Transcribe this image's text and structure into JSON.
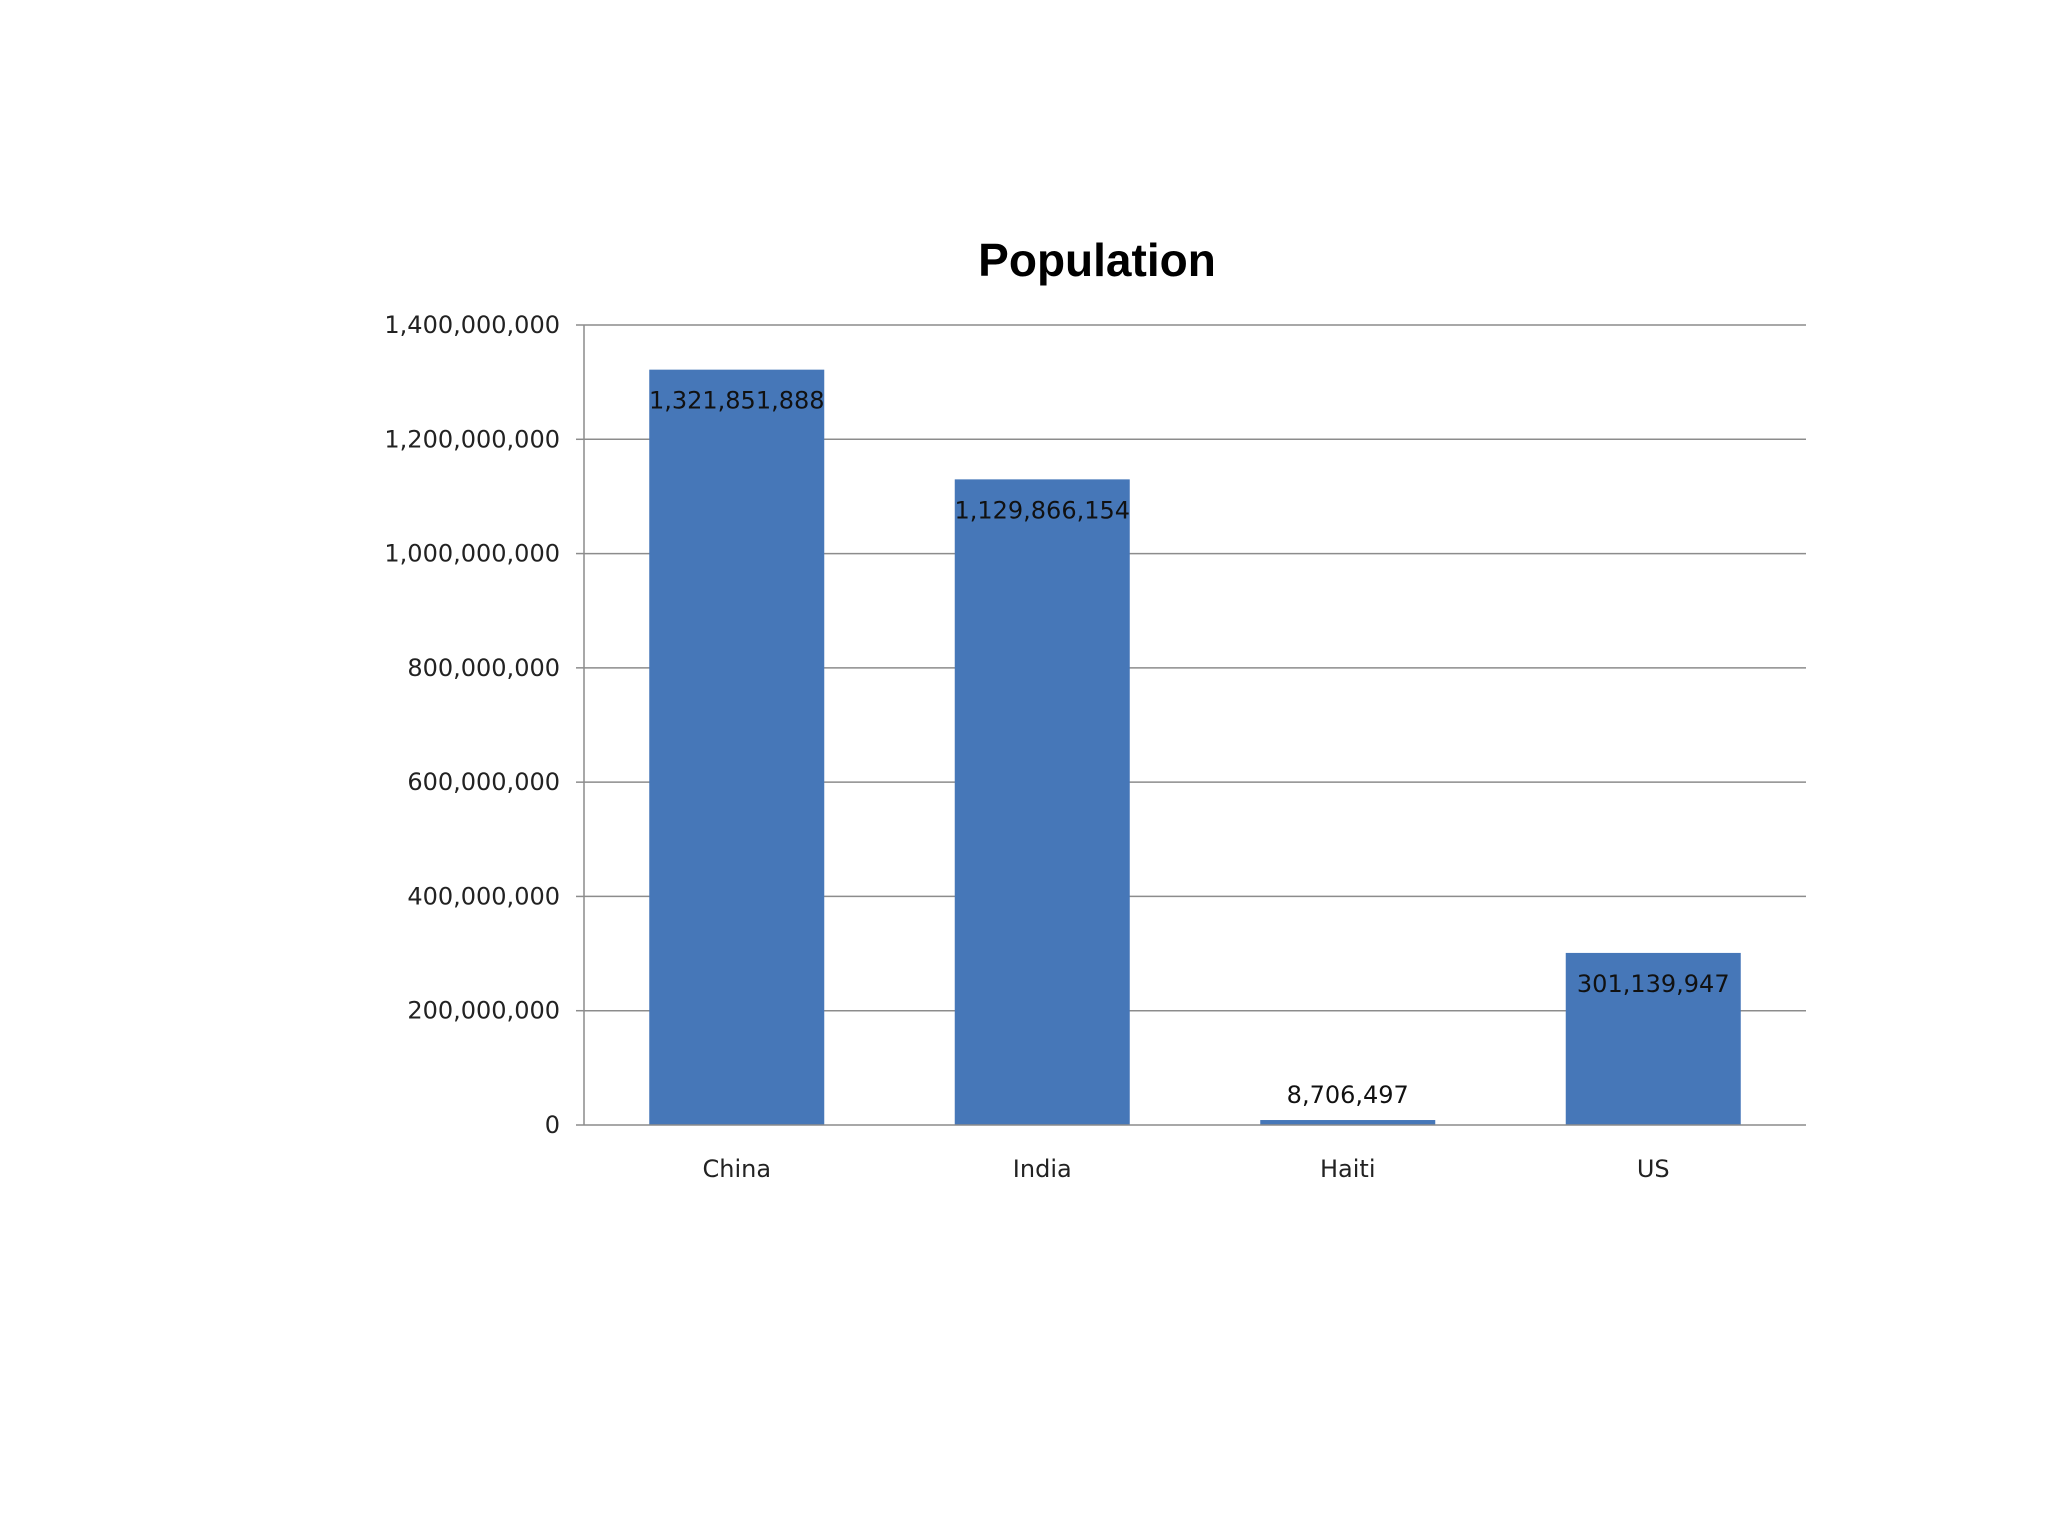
{
  "chart_data": {
    "type": "bar",
    "title": "Population",
    "xlabel": "",
    "ylabel": "",
    "categories": [
      "China",
      "India",
      "Haiti",
      "US"
    ],
    "values": [
      1321851888,
      1129866154,
      8706497,
      301139947
    ],
    "data_labels": [
      "1,321,851,888",
      "1,129,866,154",
      "8,706,497",
      "301,139,947"
    ],
    "ylim": [
      0,
      1400000000
    ],
    "y_ticks": [
      0,
      200000000,
      400000000,
      600000000,
      800000000,
      1000000000,
      1200000000,
      1400000000
    ],
    "y_tick_labels": [
      "0",
      "200,000,000",
      "400,000,000",
      "600,000,000",
      "800,000,000",
      "1,000,000,000",
      "1,200,000,000",
      "1,400,000,000"
    ],
    "grid": true,
    "legend": "none",
    "bar_color": "#4677B8"
  }
}
